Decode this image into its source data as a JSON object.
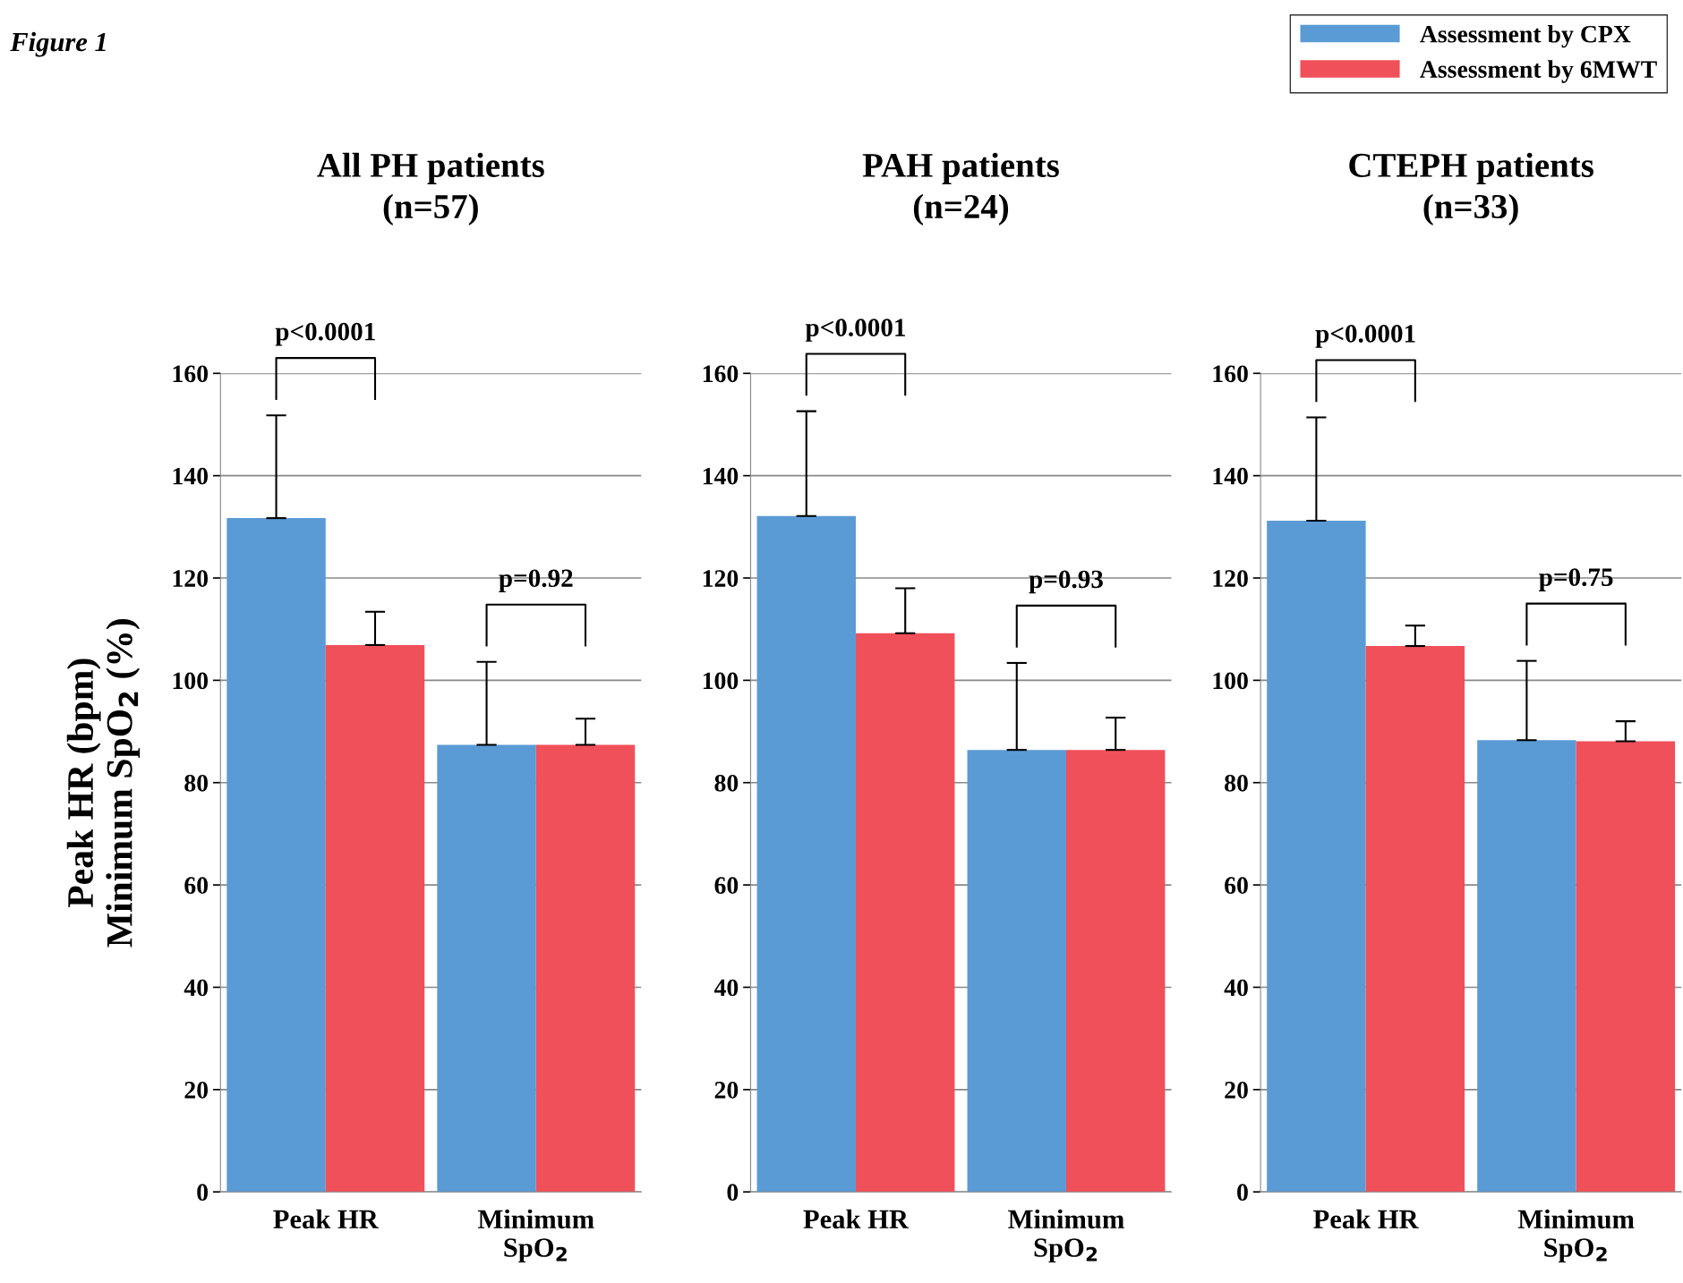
{
  "chart_data": [
    {
      "type": "bar",
      "title": "All PH patients\n(n=57)",
      "ylabel": "Peak HR (bpm)\nMinimum SpO$_{2}$ (%)",
      "categories": [
        "Peak HR",
        "Minimum\nSpO$_{2}$"
      ],
      "series": [
        {
          "name": "Assessment by CPX",
          "color": "#5b9bd5",
          "values": [
            131.7,
            87.4
          ],
          "errors": [
            [
              131.7,
              151.8
            ],
            [
              87.4,
              103.6
            ]
          ]
        },
        {
          "name": "Assessment by 6MWT",
          "color": "#f0505a",
          "values": [
            106.9,
            87.4
          ],
          "errors": [
            [
              106.9,
              113.4
            ],
            [
              87.4,
              92.5
            ]
          ]
        }
      ],
      "ylim": [
        0,
        160
      ],
      "yticks": [
        0,
        20,
        40,
        60,
        80,
        100,
        120,
        140,
        160
      ],
      "grid": "y",
      "legend": "top right",
      "annotations": [
        "Figure 1",
        "p<0.0001",
        "p=0.92"
      ]
    },
    {
      "type": "bar",
      "title": "PAH patients\n(n=24)",
      "categories": [
        "Peak HR",
        "Minimum\nSpO$_{2}$"
      ],
      "series": [
        {
          "color": "#5b9bd5",
          "values": [
            132.1,
            86.4
          ],
          "errors": [
            [
              132.1,
              152.6
            ],
            [
              86.4,
              103.4
            ]
          ]
        },
        {
          "color": "#f0505a",
          "values": [
            109.2,
            86.4
          ],
          "errors": [
            [
              109.2,
              118.0
            ],
            [
              86.4,
              92.7
            ]
          ]
        }
      ],
      "ylim": [
        0,
        160
      ],
      "yticks": [
        0,
        20,
        40,
        60,
        80,
        100,
        120,
        140,
        160
      ],
      "grid": "y",
      "annotations": [
        "p<0.0001",
        "p=0.93"
      ]
    },
    {
      "type": "bar",
      "title": "CTEPH patients\n(n=33)",
      "categories": [
        "Peak HR",
        "Minimum\nSpO$_{2}$"
      ],
      "series": [
        {
          "color": "#5b9bd5",
          "values": [
            131.2,
            88.3
          ],
          "errors": [
            [
              131.2,
              151.4
            ],
            [
              88.3,
              103.8
            ]
          ]
        },
        {
          "color": "#f0505a",
          "values": [
            106.7,
            88.1
          ],
          "errors": [
            [
              106.7,
              110.7
            ],
            [
              88.1,
              92.0
            ]
          ]
        }
      ],
      "ylim": [
        0,
        160
      ],
      "yticks": [
        0,
        20,
        40,
        60,
        80,
        100,
        120,
        140,
        160
      ],
      "grid": "y",
      "annotations": [
        "p<0.0001",
        "p=0.75"
      ]
    }
  ]
}
